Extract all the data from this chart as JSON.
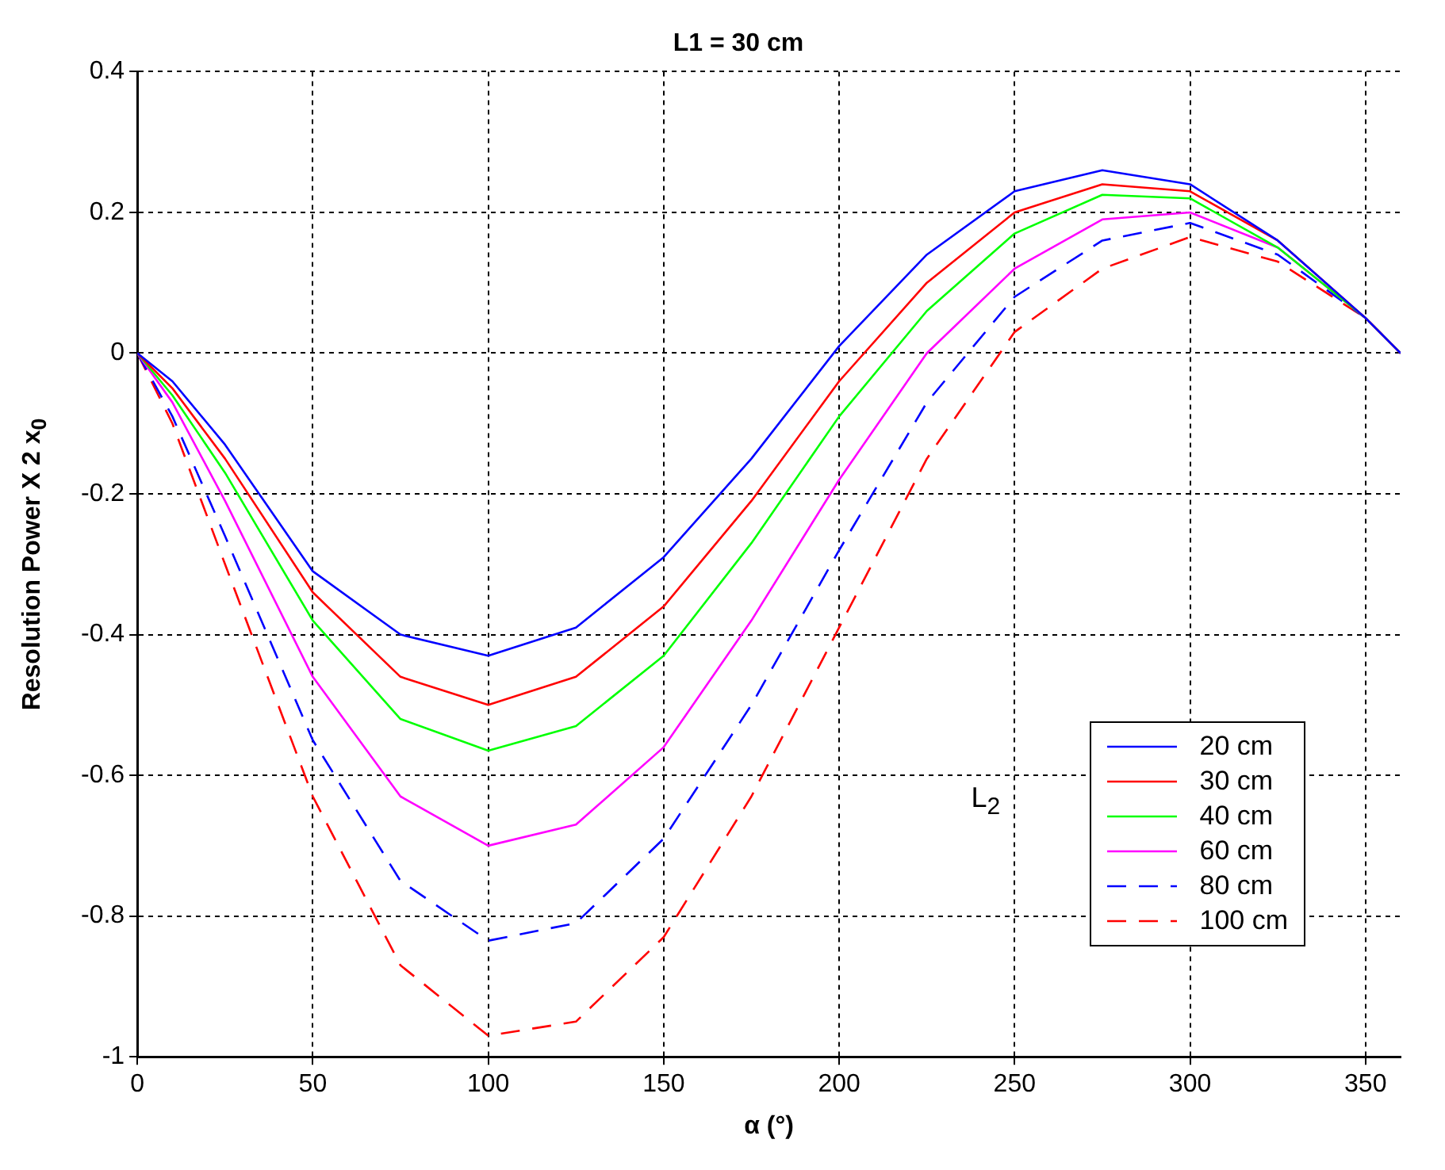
{
  "chart_data": {
    "type": "line",
    "title": "L1 = 30 cm",
    "xlabel": "α (°)",
    "ylabel": "Resolution Power X 2 x$_{0}$",
    "x": [
      0,
      10,
      25,
      50,
      75,
      100,
      125,
      150,
      175,
      200,
      225,
      250,
      275,
      300,
      325,
      350,
      360
    ],
    "series": [
      {
        "name": "20 cm",
        "color": "#0000ff",
        "line_style": "solid",
        "values": [
          0,
          -0.04,
          -0.13,
          -0.31,
          -0.4,
          -0.43,
          -0.39,
          -0.29,
          -0.15,
          0.01,
          0.14,
          0.23,
          0.26,
          0.24,
          0.16,
          0.05,
          0
        ]
      },
      {
        "name": "30 cm",
        "color": "#ff0000",
        "line_style": "solid",
        "values": [
          0,
          -0.05,
          -0.15,
          -0.34,
          -0.46,
          -0.5,
          -0.46,
          -0.36,
          -0.21,
          -0.04,
          0.1,
          0.2,
          0.24,
          0.23,
          0.16,
          0.05,
          0
        ]
      },
      {
        "name": "40 cm",
        "color": "#00ff00",
        "line_style": "solid",
        "values": [
          0,
          -0.06,
          -0.17,
          -0.38,
          -0.52,
          -0.565,
          -0.53,
          -0.43,
          -0.27,
          -0.09,
          0.06,
          0.17,
          0.225,
          0.22,
          0.15,
          0.05,
          0
        ]
      },
      {
        "name": "60 cm",
        "color": "#ff00ff",
        "line_style": "solid",
        "values": [
          0,
          -0.07,
          -0.21,
          -0.46,
          -0.63,
          -0.7,
          -0.67,
          -0.56,
          -0.38,
          -0.18,
          0.0,
          0.12,
          0.19,
          0.2,
          0.15,
          0.05,
          0
        ]
      },
      {
        "name": "80 cm",
        "color": "#0000ff",
        "line_style": "dashed",
        "values": [
          0,
          -0.09,
          -0.26,
          -0.55,
          -0.75,
          -0.835,
          -0.81,
          -0.69,
          -0.5,
          -0.28,
          -0.07,
          0.08,
          0.16,
          0.185,
          0.14,
          0.05,
          0
        ]
      },
      {
        "name": "100 cm",
        "color": "#ff0000",
        "line_style": "dashed",
        "values": [
          0,
          -0.1,
          -0.3,
          -0.63,
          -0.87,
          -0.97,
          -0.95,
          -0.83,
          -0.63,
          -0.39,
          -0.15,
          0.03,
          0.12,
          0.165,
          0.13,
          0.05,
          0
        ]
      }
    ],
    "xlim": [
      0,
      360
    ],
    "xticks": [
      0,
      50,
      100,
      150,
      200,
      250,
      300,
      350
    ],
    "ylim": [
      -1,
      0.4
    ],
    "yticks": [
      -1,
      -0.8,
      -0.6,
      -0.4,
      -0.2,
      0,
      0.2,
      0.4
    ],
    "grid": true,
    "legend": "bottom right",
    "marker": "none",
    "annotations": [
      "L$_{2}$"
    ]
  }
}
